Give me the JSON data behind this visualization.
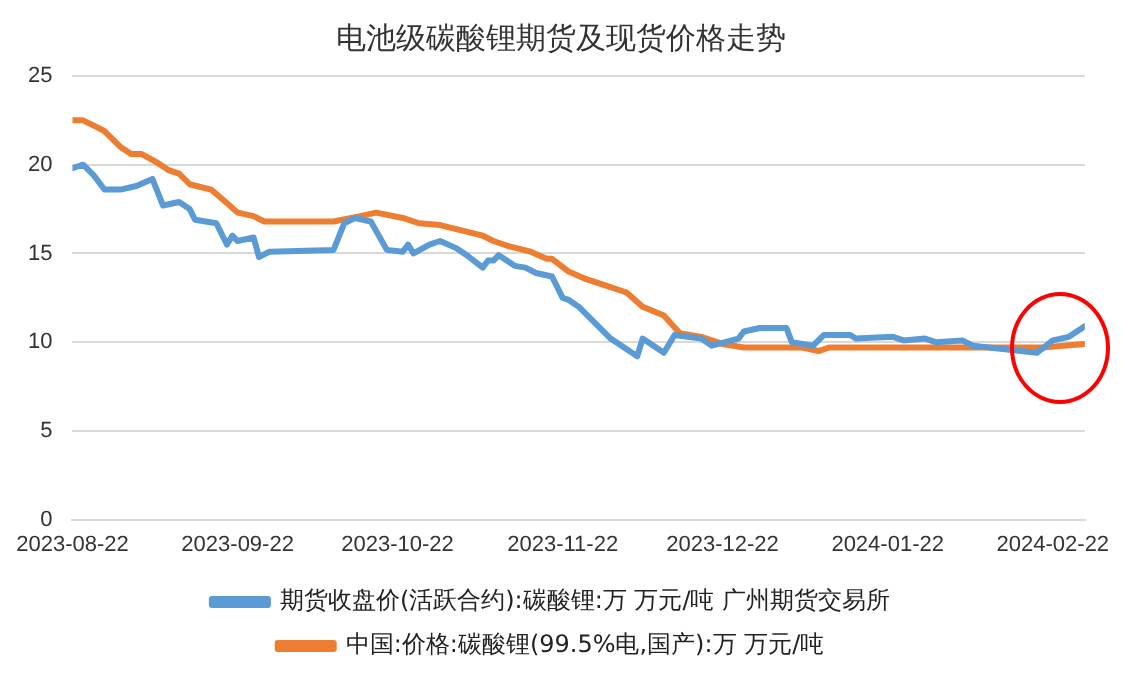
{
  "chart_data": {
    "type": "line",
    "title": "电池级碳酸锂期货及现货价格走势",
    "xlim": [
      "2023-08-22",
      "2024-02-28"
    ],
    "xticks": [
      "2023-08-22",
      "2023-09-22",
      "2023-10-22",
      "2023-11-22",
      "2023-12-22",
      "2024-01-22",
      "2024-02-22"
    ],
    "ylim": [
      0,
      25
    ],
    "yticks": [
      0,
      5,
      10,
      15,
      20,
      25
    ],
    "grid": "y",
    "legend": "bottom",
    "marker": "none",
    "line_style": "solid",
    "series": [
      {
        "name": "期货收盘价(活跃合约):碳酸锂:万 万元/吨 广州期货交易所",
        "color": "#5b9bd5",
        "x": [
          "2023-08-22",
          "2023-08-24",
          "2023-08-26",
          "2023-08-28",
          "2023-08-31",
          "2023-09-03",
          "2023-09-06",
          "2023-09-08",
          "2023-09-11",
          "2023-09-13",
          "2023-09-14",
          "2023-09-18",
          "2023-09-20",
          "2023-09-21",
          "2023-09-22",
          "2023-09-25",
          "2023-09-26",
          "2023-09-28",
          "2023-10-10",
          "2023-10-12",
          "2023-10-14",
          "2023-10-17",
          "2023-10-20",
          "2023-10-23",
          "2023-10-24",
          "2023-10-25",
          "2023-10-28",
          "2023-10-30",
          "2023-11-02",
          "2023-11-04",
          "2023-11-07",
          "2023-11-08",
          "2023-11-09",
          "2023-11-10",
          "2023-11-13",
          "2023-11-15",
          "2023-11-17",
          "2023-11-20",
          "2023-11-22",
          "2023-11-23",
          "2023-11-25",
          "2023-12-01",
          "2023-12-06",
          "2023-12-07",
          "2023-12-11",
          "2023-12-13",
          "2023-12-18",
          "2023-12-20",
          "2023-12-25",
          "2023-12-26",
          "2023-12-29",
          "2024-01-03",
          "2024-01-04",
          "2024-01-08",
          "2024-01-10",
          "2024-01-15",
          "2024-01-16",
          "2024-01-23",
          "2024-01-25",
          "2024-01-29",
          "2024-01-31",
          "2024-02-05",
          "2024-02-07",
          "2024-02-13",
          "2024-02-19",
          "2024-02-22",
          "2024-02-25",
          "2024-02-28"
        ],
        "values": [
          19.8,
          20.0,
          19.4,
          18.6,
          18.6,
          18.8,
          19.2,
          17.7,
          17.9,
          17.5,
          16.9,
          16.7,
          15.5,
          16.0,
          15.7,
          15.9,
          14.8,
          15.1,
          15.2,
          16.7,
          17.0,
          16.8,
          15.2,
          15.1,
          15.5,
          15.0,
          15.5,
          15.7,
          15.3,
          14.9,
          14.2,
          14.6,
          14.6,
          14.9,
          14.3,
          14.2,
          13.9,
          13.7,
          12.5,
          12.4,
          12.0,
          10.2,
          9.2,
          10.2,
          9.4,
          10.4,
          10.2,
          9.8,
          10.2,
          10.6,
          10.8,
          10.8,
          10.0,
          9.8,
          10.4,
          10.4,
          10.2,
          10.3,
          10.1,
          10.2,
          10.0,
          10.1,
          9.8,
          9.6,
          9.4,
          10.1,
          10.3,
          10.9
        ]
      },
      {
        "name": "中国:价格:碳酸锂(99.5%电,国产):万 万元/吨",
        "color": "#ed7d31",
        "x": [
          "2023-08-22",
          "2023-08-24",
          "2023-08-26",
          "2023-08-28",
          "2023-08-31",
          "2023-09-02",
          "2023-09-04",
          "2023-09-07",
          "2023-09-09",
          "2023-09-11",
          "2023-09-13",
          "2023-09-17",
          "2023-09-19",
          "2023-09-22",
          "2023-09-25",
          "2023-09-27",
          "2023-10-10",
          "2023-10-15",
          "2023-10-18",
          "2023-10-23",
          "2023-10-26",
          "2023-10-30",
          "2023-11-03",
          "2023-11-07",
          "2023-11-09",
          "2023-11-12",
          "2023-11-16",
          "2023-11-19",
          "2023-11-20",
          "2023-11-23",
          "2023-11-26",
          "2023-11-30",
          "2023-12-04",
          "2023-12-07",
          "2023-12-11",
          "2023-12-14",
          "2023-12-18",
          "2023-12-22",
          "2023-12-26",
          "2024-01-06",
          "2024-01-09",
          "2024-01-11",
          "2024-02-20",
          "2024-02-28"
        ],
        "values": [
          22.5,
          22.5,
          22.2,
          21.9,
          21.0,
          20.6,
          20.6,
          20.1,
          19.7,
          19.5,
          18.9,
          18.6,
          18.1,
          17.3,
          17.1,
          16.8,
          16.8,
          17.1,
          17.3,
          17.0,
          16.7,
          16.6,
          16.3,
          16.0,
          15.7,
          15.4,
          15.1,
          14.7,
          14.7,
          14.0,
          13.6,
          13.2,
          12.8,
          12.0,
          11.5,
          10.5,
          10.3,
          9.9,
          9.7,
          9.7,
          9.5,
          9.7,
          9.7,
          9.9
        ]
      }
    ]
  }
}
